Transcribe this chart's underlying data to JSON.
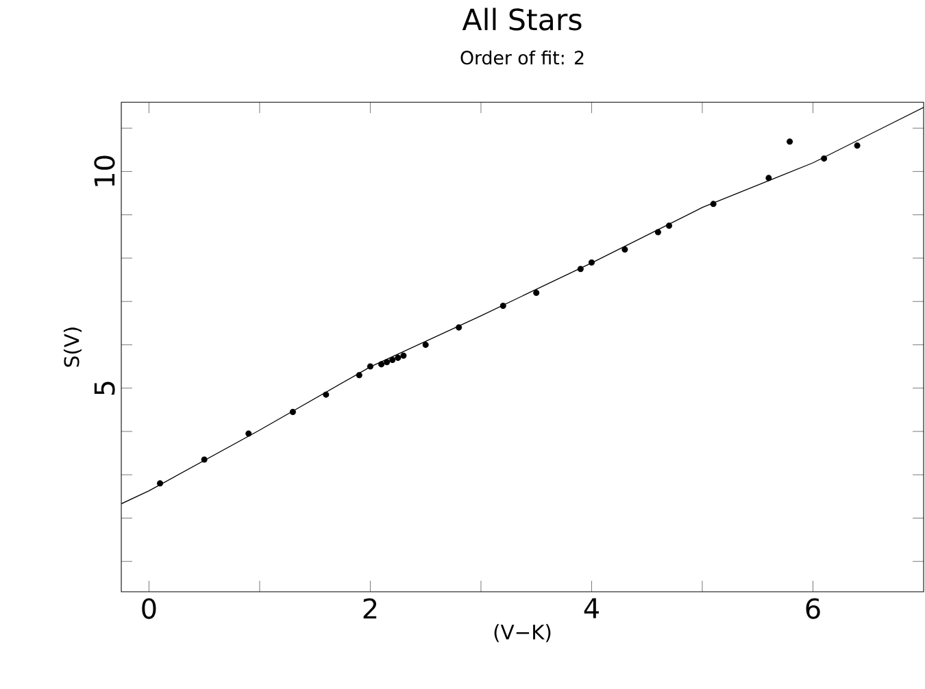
{
  "chart_data": {
    "type": "scatter",
    "title": "All Stars",
    "subtitle": "Order of fit:   2",
    "xlabel": "(V−K)",
    "ylabel": "S(V)",
    "xlim": [
      -0.25,
      7.0
    ],
    "ylim": [
      0.3,
      11.6
    ],
    "xticks": [
      0,
      {
        "value": 1,
        "label": null
      },
      2,
      {
        "value": 3,
        "label": null
      },
      4,
      {
        "value": 5,
        "label": null
      },
      6
    ],
    "yticks": [
      {
        "value": 1,
        "label": null
      },
      {
        "value": 2,
        "label": null
      },
      {
        "value": 3,
        "label": null
      },
      {
        "value": 4,
        "label": null
      },
      5,
      {
        "value": 6,
        "label": null
      },
      {
        "value": 7,
        "label": null
      },
      {
        "value": 8,
        "label": null
      },
      {
        "value": 9,
        "label": null
      },
      10,
      {
        "value": 11,
        "label": null
      }
    ],
    "grid": false,
    "marker": "circle",
    "series": [
      {
        "type": "line",
        "color": "#000000",
        "line_style": "solid",
        "marker": "none",
        "x": [
          -0.25,
          0,
          1,
          2,
          3,
          4,
          5,
          6,
          7
        ],
        "values": [
          2.33,
          2.63,
          4.03,
          5.49,
          6.67,
          7.89,
          9.17,
          10.2,
          11.48
        ]
      },
      {
        "color": "#000000",
        "x": [
          0.1,
          0.5,
          0.9,
          1.3,
          1.6,
          1.9,
          2.0,
          2.1,
          2.15,
          2.2,
          2.25,
          2.3,
          2.5,
          2.8,
          3.2,
          3.5,
          3.9,
          4.0,
          4.3,
          4.6,
          4.7,
          5.1,
          5.6,
          5.79,
          6.1,
          6.4
        ],
        "values": [
          2.8,
          3.35,
          3.95,
          4.45,
          4.85,
          5.3,
          5.5,
          5.55,
          5.6,
          5.65,
          5.7,
          5.75,
          6.0,
          6.4,
          6.9,
          7.2,
          7.75,
          7.9,
          8.2,
          8.6,
          8.75,
          9.25,
          9.85,
          10.69,
          10.3,
          10.6
        ]
      }
    ]
  }
}
